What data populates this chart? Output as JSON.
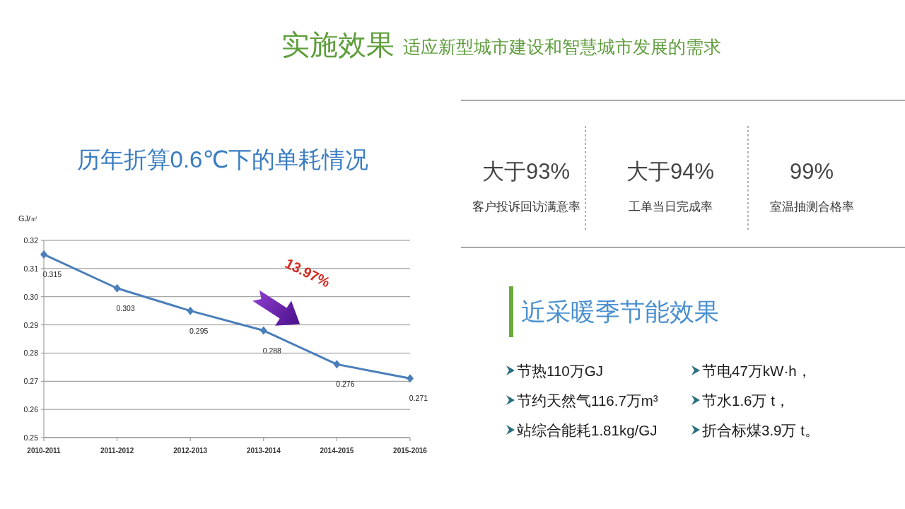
{
  "chart_data": [
    {
      "type": "other",
      "title": "实施效果",
      "subtitle": "适应新型城市建设和智慧城市发展的需求"
    },
    {
      "type": "line",
      "title": "历年折算0.6℃下的单耗情况",
      "ylabel": "GJ/㎡",
      "categories": [
        "2010-2011",
        "2011-2012",
        "2012-2013",
        "2013-2014",
        "2014-2015",
        "2015-2016"
      ],
      "series": [
        {
          "color": "#4a7ebb",
          "values": [
            0.315,
            0.303,
            0.295,
            0.288,
            0.276,
            0.271
          ]
        }
      ],
      "ylim": [
        0.25,
        0.32
      ],
      "yticks": [
        0.25,
        0.26,
        0.27,
        0.28,
        0.29,
        {
          "value": 0.3,
          "label": "0.30"
        },
        0.31,
        0.32
      ],
      "grid": "y",
      "marker": "diamond",
      "data_labels": true,
      "annotations": [
        "13.97%"
      ]
    },
    {
      "type": "other",
      "annotations": [
        "大于93%",
        "客户投诉回访满意率",
        "大于94%",
        "工单当日完成率",
        "99%",
        "室温抽测合格率"
      ]
    },
    {
      "type": "other",
      "title": "近采暖季节能效果",
      "annotations": [
        "节热110万GJ",
        "节电47万kW·h，",
        "节约天然气116.7万m³",
        "节水1.6万 t，",
        "站综合能耗1.81kg/GJ",
        "折合标煤3.9万 t。"
      ]
    }
  ]
}
